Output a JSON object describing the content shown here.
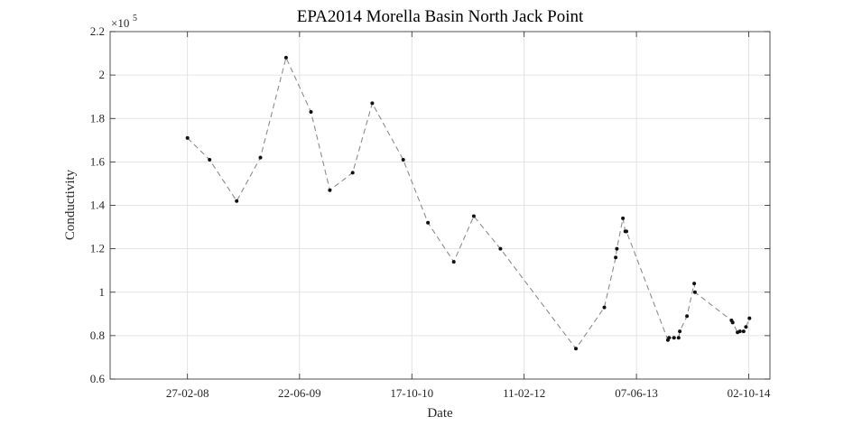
{
  "chart_data": {
    "type": "line",
    "title": "EPA2014 Morella Basin North Jack Point",
    "xlabel": "Date",
    "ylabel": "Conductivity",
    "y_exponent_label": "×10",
    "y_exponent": "5",
    "y_multiplier": 100000,
    "xlim": [
      "2007-04-01",
      "2015-01-01"
    ],
    "ylim": [
      0.6,
      2.2
    ],
    "yticks": [
      0.6,
      0.8,
      1,
      1.2,
      1.4,
      1.6,
      1.8,
      2,
      2.2
    ],
    "ytick_labels": [
      "0.6",
      "0.8",
      "1",
      "1.2",
      "1.4",
      "1.6",
      "1.8",
      "2",
      "2.2"
    ],
    "xticks": [
      "2008-02-27",
      "2009-06-22",
      "2010-10-17",
      "2012-02-11",
      "2013-06-07",
      "2014-10-02"
    ],
    "xtick_labels": [
      "27-02-08",
      "22-06-09",
      "17-10-10",
      "11-02-12",
      "07-06-13",
      "02-10-14"
    ],
    "grid": true,
    "line_style": "dashed",
    "line_color": "#8c8c8c",
    "marker_color": "#111111",
    "series": [
      {
        "x": [
          "2008-02-27",
          "2008-06-01",
          "2008-09-25",
          "2009-01-05",
          "2009-04-25",
          "2009-08-10",
          "2009-10-30",
          "2010-02-05",
          "2010-04-30",
          "2010-09-10",
          "2010-12-25",
          "2011-04-15",
          "2011-07-10",
          "2011-11-01",
          "2012-09-20",
          "2013-01-20",
          "2013-03-10",
          "2013-03-15",
          "2013-04-10",
          "2013-04-20",
          "2013-04-25",
          "2013-10-20",
          "2013-10-25",
          "2013-11-15",
          "2013-12-05",
          "2013-12-10",
          "2014-01-10",
          "2014-02-10",
          "2014-02-13",
          "2014-07-20",
          "2014-07-25",
          "2014-08-15",
          "2014-08-25",
          "2014-09-10",
          "2014-09-20",
          "2014-10-05"
        ],
        "y": [
          1.71,
          1.61,
          1.42,
          1.62,
          2.08,
          1.83,
          1.47,
          1.55,
          1.87,
          1.61,
          1.32,
          1.14,
          1.35,
          1.2,
          0.74,
          0.93,
          1.16,
          1.2,
          1.34,
          1.28,
          1.28,
          0.78,
          0.79,
          0.79,
          0.79,
          0.82,
          0.89,
          1.04,
          1.0,
          0.87,
          0.86,
          0.815,
          0.82,
          0.82,
          0.84,
          0.88
        ]
      }
    ]
  }
}
